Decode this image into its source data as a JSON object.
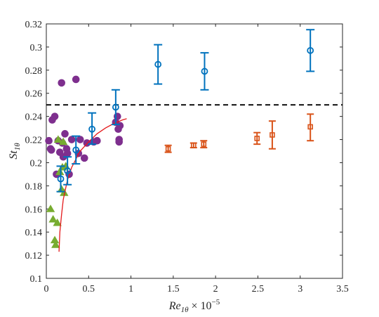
{
  "chart_data": {
    "type": "scatter",
    "title": "",
    "xlabel": "Re_1θ × 10^-5",
    "xlabel_parts": {
      "var": "Re",
      "sub": "1θ",
      "times": " × 10",
      "exp": "−5"
    },
    "ylabel": "St_1θ",
    "ylabel_parts": {
      "var": "St",
      "sub": "1θ"
    },
    "xlim": [
      0,
      3.5
    ],
    "ylim": [
      0.1,
      0.32
    ],
    "xticks": [
      0,
      0.5,
      1,
      1.5,
      2,
      2.5,
      3,
      3.5
    ],
    "xtick_labels": [
      "0",
      "0.5",
      "1",
      "1.5",
      "2",
      "2.5",
      "3",
      "3.5"
    ],
    "yticks": [
      0.1,
      0.12,
      0.14,
      0.16,
      0.18,
      0.2,
      0.22,
      0.24,
      0.26,
      0.28,
      0.3,
      0.32
    ],
    "ytick_labels": [
      "0.1",
      "0.12",
      "0.14",
      "0.16",
      "0.18",
      "0.2",
      "0.22",
      "0.24",
      "0.26",
      "0.28",
      "0.3",
      "0.32"
    ],
    "grid": false,
    "reference_line": {
      "y": 0.25,
      "style": "dashed",
      "color": "#000000"
    },
    "series": [
      {
        "marker": "filled-circle",
        "color": "#7e2f8e",
        "points": [
          [
            0.03,
            0.219
          ],
          [
            0.05,
            0.212
          ],
          [
            0.06,
            0.211
          ],
          [
            0.07,
            0.237
          ],
          [
            0.1,
            0.24
          ],
          [
            0.12,
            0.19
          ],
          [
            0.14,
            0.219
          ],
          [
            0.16,
            0.209
          ],
          [
            0.18,
            0.269
          ],
          [
            0.19,
            0.217
          ],
          [
            0.2,
            0.205
          ],
          [
            0.22,
            0.225
          ],
          [
            0.24,
            0.212
          ],
          [
            0.25,
            0.208
          ],
          [
            0.27,
            0.19
          ],
          [
            0.3,
            0.22
          ],
          [
            0.35,
            0.272
          ],
          [
            0.38,
            0.208
          ],
          [
            0.4,
            0.22
          ],
          [
            0.45,
            0.204
          ],
          [
            0.48,
            0.217
          ],
          [
            0.56,
            0.218
          ],
          [
            0.6,
            0.219
          ],
          [
            0.82,
            0.235
          ],
          [
            0.84,
            0.24
          ],
          [
            0.85,
            0.229
          ],
          [
            0.86,
            0.22
          ],
          [
            0.86,
            0.218
          ],
          [
            0.87,
            0.232
          ]
        ]
      },
      {
        "marker": "filled-triangle",
        "color": "#77ac30",
        "points": [
          [
            0.05,
            0.16
          ],
          [
            0.08,
            0.151
          ],
          [
            0.1,
            0.133
          ],
          [
            0.11,
            0.129
          ],
          [
            0.13,
            0.148
          ],
          [
            0.14,
            0.22
          ],
          [
            0.16,
            0.192
          ],
          [
            0.18,
            0.177
          ],
          [
            0.19,
            0.196
          ],
          [
            0.2,
            0.218
          ],
          [
            0.21,
            0.174
          ],
          [
            0.23,
            0.197
          ]
        ]
      },
      {
        "marker": "open-circle",
        "color": "#0072bd",
        "points": [
          {
            "x": 0.17,
            "y": 0.186,
            "lo": 0.175,
            "hi": 0.197
          },
          {
            "x": 0.25,
            "y": 0.193,
            "lo": 0.181,
            "hi": 0.205
          },
          {
            "x": 0.35,
            "y": 0.211,
            "lo": 0.199,
            "hi": 0.223
          },
          {
            "x": 0.54,
            "y": 0.229,
            "lo": 0.216,
            "hi": 0.243
          },
          {
            "x": 0.82,
            "y": 0.248,
            "lo": 0.233,
            "hi": 0.263
          },
          {
            "x": 1.32,
            "y": 0.285,
            "lo": 0.268,
            "hi": 0.302
          },
          {
            "x": 1.87,
            "y": 0.279,
            "lo": 0.263,
            "hi": 0.295
          },
          {
            "x": 3.12,
            "y": 0.297,
            "lo": 0.279,
            "hi": 0.315
          }
        ]
      },
      {
        "marker": "open-square",
        "color": "#d95319",
        "points": [
          {
            "x": 1.44,
            "y": 0.212,
            "lo": 0.209,
            "hi": 0.215
          },
          {
            "x": 1.74,
            "y": 0.215,
            "lo": 0.213,
            "hi": 0.217
          },
          {
            "x": 1.86,
            "y": 0.216,
            "lo": 0.213,
            "hi": 0.219
          },
          {
            "x": 2.49,
            "y": 0.221,
            "lo": 0.216,
            "hi": 0.226
          },
          {
            "x": 2.67,
            "y": 0.224,
            "lo": 0.212,
            "hi": 0.236
          },
          {
            "x": 3.12,
            "y": 0.231,
            "lo": 0.219,
            "hi": 0.242
          }
        ]
      }
    ],
    "fit_curve": {
      "color": "#e41a1c",
      "points": [
        [
          0.15,
          0.123
        ],
        [
          0.16,
          0.14
        ],
        [
          0.18,
          0.155
        ],
        [
          0.2,
          0.168
        ],
        [
          0.25,
          0.185
        ],
        [
          0.3,
          0.196
        ],
        [
          0.4,
          0.21
        ],
        [
          0.5,
          0.218
        ],
        [
          0.6,
          0.225
        ],
        [
          0.7,
          0.23
        ],
        [
          0.8,
          0.234
        ],
        [
          0.9,
          0.237
        ],
        [
          0.95,
          0.238
        ]
      ]
    }
  }
}
